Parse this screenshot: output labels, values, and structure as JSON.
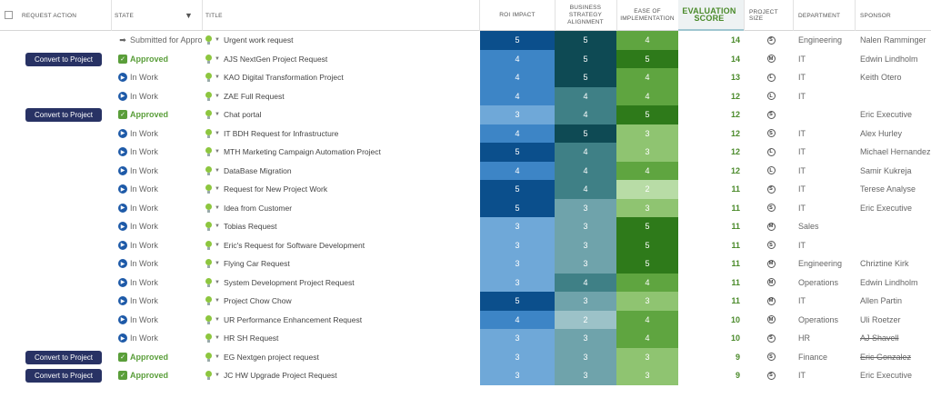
{
  "header": {
    "request_action": "REQUEST ACTION",
    "state": "STATE",
    "title": "TITLE",
    "roi_impact": "ROI IMPACT",
    "bsa_line1": "BUSINESS",
    "bsa_line2": "STRATEGY",
    "bsa_line3": "ALIGNMENT",
    "eoi_line1": "EASE OF",
    "eoi_line2": "IMPLEMENTATION",
    "evaluation_score": "EVALUATION SCORE",
    "project_size": "PROJECT SIZE",
    "department": "DEPARTMENT",
    "sponsor": "SPONSOR",
    "filter_icon": "filter-icon"
  },
  "convert_label": "Convert to Project",
  "colors": {
    "roi": {
      "3": "#6fa8d8",
      "4": "#3d85c6",
      "5": "#0b4f8c"
    },
    "bsa": {
      "2": "#9cc2c8",
      "3": "#6fa3ab",
      "4": "#3f8086",
      "5": "#0e4a54"
    },
    "eoi": {
      "2": "#b8dca6",
      "3": "#8fc471",
      "4": "#5fa540",
      "5": "#2e7a1a"
    }
  },
  "rows": [
    {
      "action": "",
      "state": "Submitted for Approval",
      "state_type": "submitted",
      "title": "Urgent work request",
      "roi": 5,
      "bsa": 5,
      "eoi": 4,
      "score": 14,
      "size": "S",
      "dept": "Engineering",
      "sponsor": "Nalen Ramminger",
      "strike": false
    },
    {
      "action": "convert",
      "state": "Approved",
      "state_type": "approved",
      "title": "AJS NextGen Project Request",
      "roi": 4,
      "bsa": 5,
      "eoi": 5,
      "score": 14,
      "size": "M",
      "dept": "IT",
      "sponsor": "Edwin Lindholm",
      "strike": false
    },
    {
      "action": "",
      "state": "In Work",
      "state_type": "work",
      "title": "KAO Digital Transformation Project",
      "roi": 4,
      "bsa": 5,
      "eoi": 4,
      "score": 13,
      "size": "L",
      "dept": "IT",
      "sponsor": "Keith Otero",
      "strike": false
    },
    {
      "action": "",
      "state": "In Work",
      "state_type": "work",
      "title": "ZAE Full Request",
      "roi": 4,
      "bsa": 4,
      "eoi": 4,
      "score": 12,
      "size": "L",
      "dept": "IT",
      "sponsor": "",
      "strike": false
    },
    {
      "action": "convert",
      "state": "Approved",
      "state_type": "approved",
      "title": "Chat portal",
      "roi": 3,
      "bsa": 4,
      "eoi": 5,
      "score": 12,
      "size": "S",
      "dept": "",
      "sponsor": "Eric Executive",
      "strike": false
    },
    {
      "action": "",
      "state": "In Work",
      "state_type": "work",
      "title": "IT BDH Request for Infrastructure",
      "roi": 4,
      "bsa": 5,
      "eoi": 3,
      "score": 12,
      "size": "S",
      "dept": "IT",
      "sponsor": "Alex Hurley",
      "strike": false
    },
    {
      "action": "",
      "state": "In Work",
      "state_type": "work",
      "title": "MTH Marketing Campaign Automation Project",
      "roi": 5,
      "bsa": 4,
      "eoi": 3,
      "score": 12,
      "size": "L",
      "dept": "IT",
      "sponsor": "Michael Hernandez",
      "strike": false
    },
    {
      "action": "",
      "state": "In Work",
      "state_type": "work",
      "title": "DataBase Migration",
      "roi": 4,
      "bsa": 4,
      "eoi": 4,
      "score": 12,
      "size": "L",
      "dept": "IT",
      "sponsor": "Samir Kukreja",
      "strike": false
    },
    {
      "action": "",
      "state": "In Work",
      "state_type": "work",
      "title": "Request for New Project Work",
      "roi": 5,
      "bsa": 4,
      "eoi": 2,
      "score": 11,
      "size": "S",
      "dept": "IT",
      "sponsor": "Terese Analyse",
      "strike": false
    },
    {
      "action": "",
      "state": "In Work",
      "state_type": "work",
      "title": "Idea from Customer",
      "roi": 5,
      "bsa": 3,
      "eoi": 3,
      "score": 11,
      "size": "S",
      "dept": "IT",
      "sponsor": "Eric Executive",
      "strike": false
    },
    {
      "action": "",
      "state": "In Work",
      "state_type": "work",
      "title": "Tobias Request",
      "roi": 3,
      "bsa": 3,
      "eoi": 5,
      "score": 11,
      "size": "M",
      "dept": "Sales",
      "sponsor": "",
      "strike": false
    },
    {
      "action": "",
      "state": "In Work",
      "state_type": "work",
      "title": "Eric's Request for Software Development",
      "roi": 3,
      "bsa": 3,
      "eoi": 5,
      "score": 11,
      "size": "S",
      "dept": "IT",
      "sponsor": "",
      "strike": false
    },
    {
      "action": "",
      "state": "In Work",
      "state_type": "work",
      "title": "Flying Car Request",
      "roi": 3,
      "bsa": 3,
      "eoi": 5,
      "score": 11,
      "size": "M",
      "dept": "Engineering",
      "sponsor": "Chriztine Kirk",
      "strike": false
    },
    {
      "action": "",
      "state": "In Work",
      "state_type": "work",
      "title": "System Development Project Request",
      "roi": 3,
      "bsa": 4,
      "eoi": 4,
      "score": 11,
      "size": "M",
      "dept": "Operations",
      "sponsor": "Edwin Lindholm",
      "strike": false
    },
    {
      "action": "",
      "state": "In Work",
      "state_type": "work",
      "title": "Project Chow Chow",
      "roi": 5,
      "bsa": 3,
      "eoi": 3,
      "score": 11,
      "size": "M",
      "dept": "IT",
      "sponsor": "Allen Partin",
      "strike": false
    },
    {
      "action": "",
      "state": "In Work",
      "state_type": "work",
      "title": "UR Performance Enhancement Request",
      "roi": 4,
      "bsa": 2,
      "eoi": 4,
      "score": 10,
      "size": "M",
      "dept": "Operations",
      "sponsor": "Uli Roetzer",
      "strike": false
    },
    {
      "action": "",
      "state": "In Work",
      "state_type": "work",
      "title": "HR SH Request",
      "roi": 3,
      "bsa": 3,
      "eoi": 4,
      "score": 10,
      "size": "S",
      "dept": "HR",
      "sponsor": "AJ Shavell",
      "strike": true
    },
    {
      "action": "convert",
      "state": "Approved",
      "state_type": "approved",
      "title": "EG Nextgen project request",
      "roi": 3,
      "bsa": 3,
      "eoi": 3,
      "score": 9,
      "size": "S",
      "dept": "Finance",
      "sponsor": "Eric Gonzalez",
      "strike": true
    },
    {
      "action": "convert",
      "state": "Approved",
      "state_type": "approved",
      "title": "JC HW Upgrade Project Request",
      "roi": 3,
      "bsa": 3,
      "eoi": 3,
      "score": 9,
      "size": "S",
      "dept": "IT",
      "sponsor": "Eric Executive",
      "strike": false
    }
  ]
}
